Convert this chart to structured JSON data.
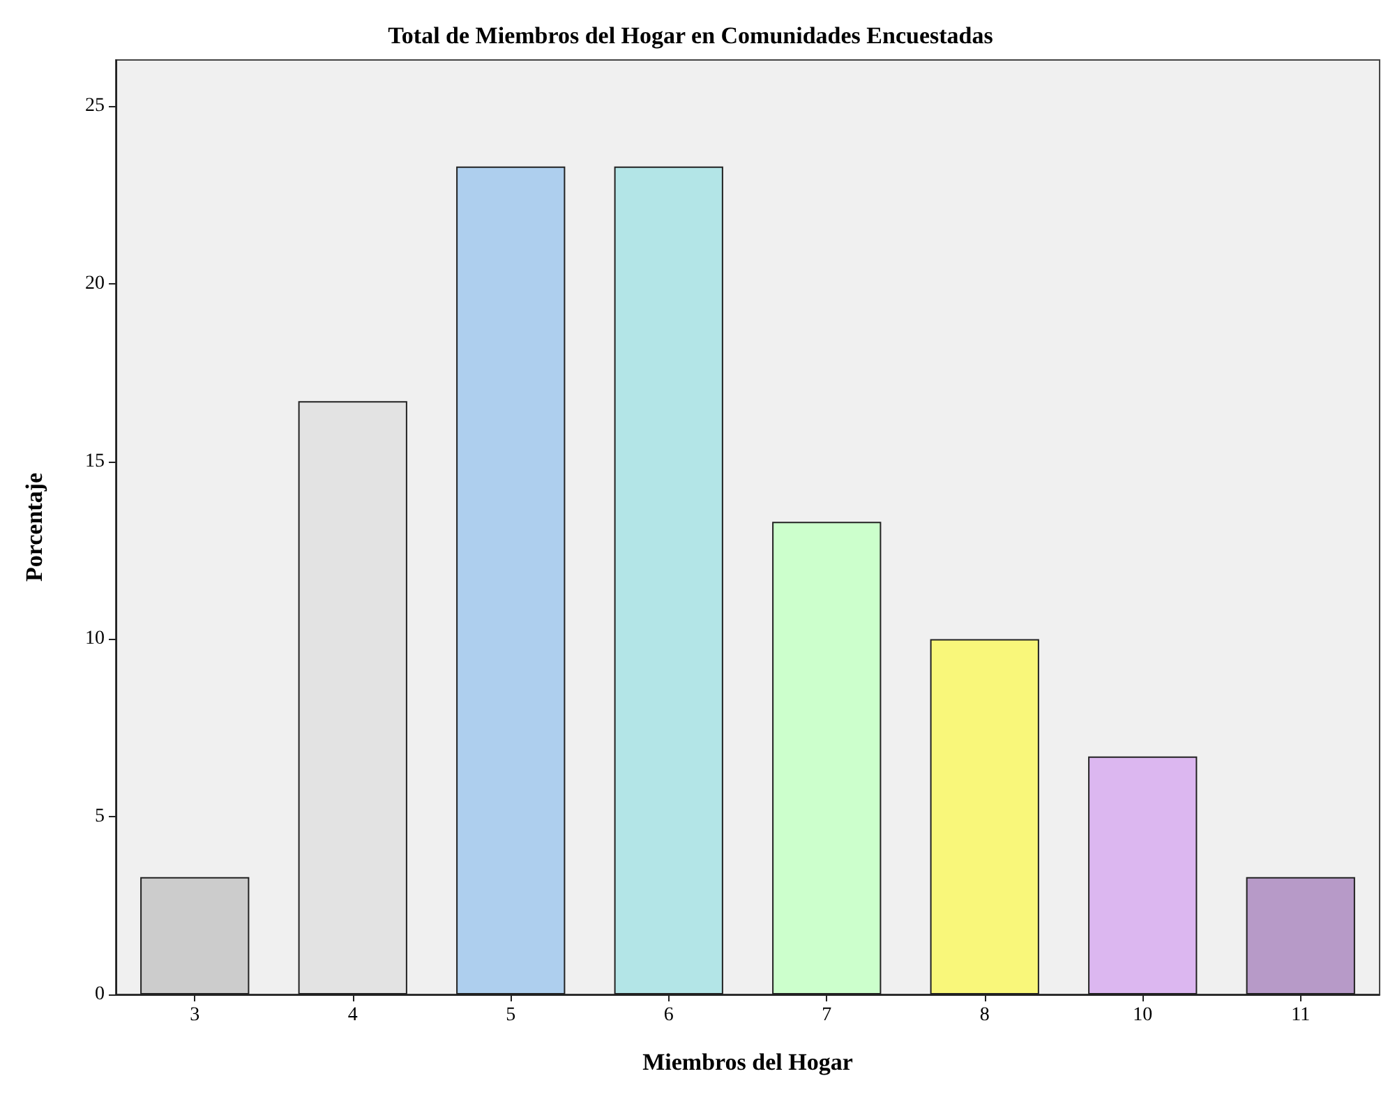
{
  "chart_data": {
    "type": "bar",
    "title": "Total de Miembros del Hogar en Comunidades Encuestadas",
    "xlabel": "Miembros del Hogar",
    "ylabel": "Porcentaje",
    "categories": [
      "3",
      "4",
      "5",
      "6",
      "7",
      "8",
      "10",
      "11"
    ],
    "values": [
      3.3,
      16.7,
      23.3,
      23.3,
      13.3,
      10.0,
      6.7,
      3.3
    ],
    "colors": [
      "#cccccc",
      "#e3e3e3",
      "#aecfee",
      "#b3e5e7",
      "#ccffcc",
      "#f9f77a",
      "#dcb7f0",
      "#b79ac8"
    ],
    "ylim": [
      0,
      26.3
    ],
    "yticks": [
      0,
      5,
      10,
      15,
      20,
      25
    ],
    "grid": false
  }
}
